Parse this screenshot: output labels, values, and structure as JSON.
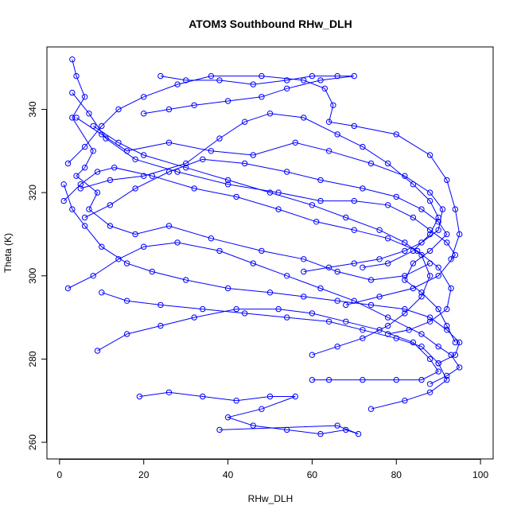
{
  "chart_data": {
    "type": "line",
    "title": "ATOM3 Southbound RHw_DLH",
    "xlabel": "RHw_DLH",
    "ylabel": "Theta (K)",
    "xlim": [
      -3,
      103
    ],
    "ylim": [
      256,
      355
    ],
    "x_ticks": [
      0,
      20,
      40,
      60,
      80,
      100
    ],
    "y_ticks": [
      260,
      280,
      300,
      320,
      340
    ],
    "grid": false,
    "legend": "none",
    "series_color": "#0000ff",
    "marker": "open-circle",
    "series": [
      {
        "points": [
          [
            3,
            352
          ],
          [
            4,
            348
          ],
          [
            6,
            343
          ],
          [
            3,
            338
          ],
          [
            8,
            330
          ],
          [
            6,
            326
          ],
          [
            4,
            324
          ],
          [
            9,
            320
          ],
          [
            7,
            316
          ],
          [
            12,
            312
          ],
          [
            18,
            310
          ],
          [
            26,
            312
          ],
          [
            36,
            309
          ],
          [
            48,
            306
          ],
          [
            58,
            304
          ],
          [
            66,
            301
          ],
          [
            74,
            299
          ],
          [
            82,
            300
          ],
          [
            88,
            303
          ]
        ]
      },
      {
        "points": [
          [
            2,
            327
          ],
          [
            6,
            331
          ],
          [
            10,
            336
          ],
          [
            14,
            340
          ],
          [
            20,
            343
          ],
          [
            28,
            346
          ],
          [
            36,
            348
          ],
          [
            48,
            348
          ],
          [
            58,
            347
          ],
          [
            63,
            345
          ],
          [
            65,
            341
          ],
          [
            64,
            337
          ],
          [
            70,
            336
          ],
          [
            80,
            334
          ],
          [
            88,
            329
          ],
          [
            92,
            323
          ],
          [
            94,
            316
          ],
          [
            95,
            310
          ],
          [
            93,
            304
          ]
        ]
      },
      {
        "points": [
          [
            1,
            318
          ],
          [
            5,
            322
          ],
          [
            9,
            325
          ],
          [
            13,
            326
          ],
          [
            22,
            324
          ],
          [
            32,
            321
          ],
          [
            42,
            319
          ],
          [
            52,
            316
          ],
          [
            61,
            313
          ],
          [
            70,
            311
          ],
          [
            78,
            309
          ],
          [
            85,
            306
          ],
          [
            90,
            302
          ],
          [
            93,
            297
          ],
          [
            92,
            292
          ],
          [
            88,
            289
          ],
          [
            83,
            287
          ],
          [
            78,
            286
          ]
        ]
      },
      {
        "points": [
          [
            2,
            297
          ],
          [
            8,
            300
          ],
          [
            14,
            304
          ],
          [
            20,
            307
          ],
          [
            28,
            308
          ],
          [
            38,
            306
          ],
          [
            46,
            303
          ],
          [
            54,
            300
          ],
          [
            62,
            297
          ],
          [
            70,
            294
          ],
          [
            78,
            290
          ],
          [
            86,
            286
          ],
          [
            90,
            283
          ],
          [
            93,
            281
          ],
          [
            95,
            278
          ],
          [
            92,
            276
          ],
          [
            88,
            274
          ]
        ]
      },
      {
        "points": [
          [
            10,
            296
          ],
          [
            16,
            294
          ],
          [
            24,
            293
          ],
          [
            34,
            292
          ],
          [
            44,
            291
          ],
          [
            54,
            290
          ],
          [
            64,
            289
          ],
          [
            72,
            287
          ],
          [
            80,
            285
          ],
          [
            86,
            283
          ],
          [
            90,
            279
          ],
          [
            92,
            275
          ],
          [
            88,
            272
          ],
          [
            82,
            270
          ],
          [
            74,
            268
          ]
        ]
      },
      {
        "points": [
          [
            19,
            271
          ],
          [
            26,
            272
          ],
          [
            34,
            271
          ],
          [
            42,
            270
          ],
          [
            50,
            271
          ],
          [
            56,
            271
          ],
          [
            48,
            268
          ],
          [
            40,
            266
          ],
          [
            46,
            264
          ],
          [
            54,
            263
          ],
          [
            62,
            262
          ],
          [
            68,
            263
          ],
          [
            71,
            262
          ],
          [
            66,
            264
          ],
          [
            38,
            263
          ]
        ]
      },
      {
        "points": [
          [
            4,
            338
          ],
          [
            10,
            334
          ],
          [
            16,
            330
          ],
          [
            26,
            332
          ],
          [
            36,
            330
          ],
          [
            46,
            329
          ],
          [
            56,
            332
          ],
          [
            64,
            330
          ],
          [
            74,
            327
          ],
          [
            82,
            324
          ],
          [
            88,
            320
          ],
          [
            91,
            316
          ],
          [
            90,
            311
          ],
          [
            86,
            308
          ],
          [
            82,
            306
          ],
          [
            76,
            304
          ],
          [
            70,
            303
          ],
          [
            64,
            302
          ],
          [
            58,
            301
          ]
        ]
      },
      {
        "points": [
          [
            3,
            344
          ],
          [
            7,
            339
          ],
          [
            11,
            333
          ],
          [
            18,
            328
          ],
          [
            28,
            325
          ],
          [
            40,
            322
          ],
          [
            52,
            320
          ],
          [
            62,
            318
          ],
          [
            70,
            318
          ],
          [
            78,
            317
          ],
          [
            84,
            314
          ],
          [
            88,
            311
          ],
          [
            92,
            308
          ],
          [
            94,
            305
          ],
          [
            90,
            300
          ],
          [
            84,
            297
          ],
          [
            76,
            295
          ],
          [
            68,
            293
          ]
        ]
      },
      {
        "points": [
          [
            6,
            314
          ],
          [
            12,
            317
          ],
          [
            18,
            321
          ],
          [
            26,
            325
          ],
          [
            34,
            328
          ],
          [
            44,
            327
          ],
          [
            54,
            325
          ],
          [
            62,
            323
          ],
          [
            72,
            321
          ],
          [
            80,
            319
          ],
          [
            86,
            316
          ],
          [
            90,
            313
          ],
          [
            92,
            310
          ],
          [
            88,
            306
          ],
          [
            84,
            303
          ],
          [
            82,
            299
          ],
          [
            86,
            296
          ],
          [
            90,
            292
          ],
          [
            92,
            288
          ],
          [
            94,
            284
          ]
        ]
      },
      {
        "points": [
          [
            8,
            336
          ],
          [
            14,
            332
          ],
          [
            20,
            329
          ],
          [
            30,
            326
          ],
          [
            40,
            323
          ],
          [
            50,
            320
          ],
          [
            60,
            317
          ],
          [
            68,
            314
          ],
          [
            76,
            311
          ],
          [
            82,
            308
          ],
          [
            86,
            305
          ],
          [
            88,
            300
          ],
          [
            86,
            295
          ],
          [
            82,
            291
          ],
          [
            78,
            288
          ],
          [
            72,
            285
          ],
          [
            66,
            283
          ],
          [
            60,
            281
          ]
        ]
      },
      {
        "points": [
          [
            1,
            322
          ],
          [
            3,
            316
          ],
          [
            6,
            312
          ],
          [
            10,
            307
          ],
          [
            16,
            303
          ],
          [
            22,
            301
          ],
          [
            30,
            299
          ],
          [
            40,
            297
          ],
          [
            50,
            296
          ],
          [
            58,
            295
          ],
          [
            66,
            294
          ],
          [
            74,
            293
          ],
          [
            82,
            292
          ],
          [
            88,
            290
          ],
          [
            92,
            287
          ],
          [
            95,
            284
          ],
          [
            94,
            281
          ],
          [
            90,
            279
          ]
        ]
      },
      {
        "points": [
          [
            5,
            321
          ],
          [
            12,
            323
          ],
          [
            20,
            324
          ],
          [
            30,
            327
          ],
          [
            38,
            333
          ],
          [
            44,
            337
          ],
          [
            50,
            339
          ],
          [
            58,
            338
          ],
          [
            66,
            334
          ],
          [
            72,
            331
          ],
          [
            78,
            327
          ],
          [
            84,
            322
          ],
          [
            88,
            318
          ],
          [
            90,
            314
          ],
          [
            88,
            310
          ],
          [
            84,
            306
          ],
          [
            78,
            303
          ],
          [
            72,
            302
          ]
        ]
      },
      {
        "points": [
          [
            24,
            348
          ],
          [
            30,
            347
          ],
          [
            38,
            347
          ],
          [
            46,
            346
          ],
          [
            54,
            347
          ],
          [
            60,
            348
          ],
          [
            66,
            348
          ],
          [
            70,
            348
          ],
          [
            62,
            347
          ],
          [
            54,
            345
          ],
          [
            48,
            343
          ],
          [
            40,
            342
          ],
          [
            32,
            341
          ],
          [
            26,
            340
          ],
          [
            20,
            339
          ]
        ]
      },
      {
        "points": [
          [
            9,
            282
          ],
          [
            16,
            286
          ],
          [
            24,
            288
          ],
          [
            32,
            290
          ],
          [
            42,
            292
          ],
          [
            52,
            292
          ],
          [
            60,
            291
          ],
          [
            68,
            289
          ],
          [
            76,
            287
          ],
          [
            84,
            284
          ],
          [
            88,
            280
          ],
          [
            90,
            277
          ],
          [
            86,
            275
          ],
          [
            80,
            275
          ],
          [
            72,
            275
          ],
          [
            64,
            275
          ],
          [
            60,
            275
          ]
        ]
      }
    ]
  }
}
